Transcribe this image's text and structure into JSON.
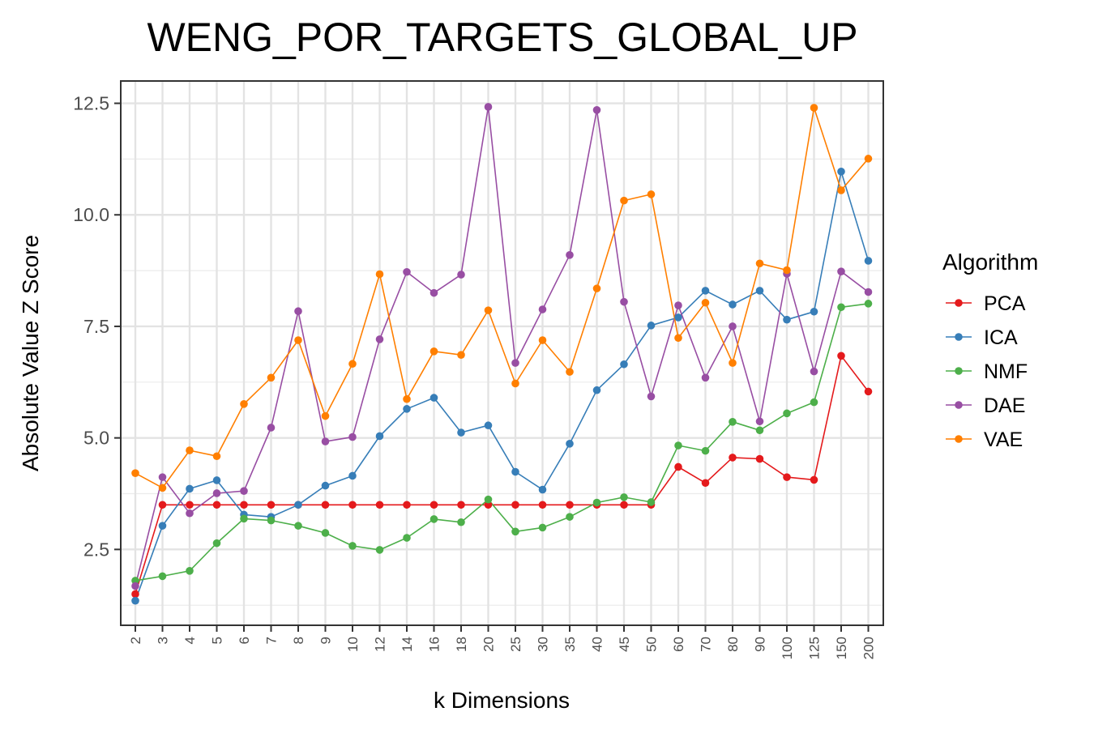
{
  "chart_data": {
    "type": "line",
    "title": "WENG_POR_TARGETS_GLOBAL_UP",
    "xlabel": "k Dimensions",
    "ylabel": "Absolute Value Z Score",
    "categories": [
      "2",
      "3",
      "4",
      "5",
      "6",
      "7",
      "8",
      "9",
      "10",
      "12",
      "14",
      "16",
      "18",
      "20",
      "25",
      "30",
      "35",
      "40",
      "45",
      "50",
      "60",
      "70",
      "80",
      "90",
      "100",
      "125",
      "150",
      "200"
    ],
    "ylim": [
      0.8,
      13.0
    ],
    "y_ticks": [
      2.5,
      5.0,
      7.5,
      10.0,
      12.5
    ],
    "y_tick_labels": [
      "2.5",
      "5.0",
      "7.5",
      "10.0",
      "12.5"
    ],
    "grid": true,
    "legend": {
      "title": "Algorithm",
      "position": "right"
    },
    "series": [
      {
        "name": "PCA",
        "color": "#e41a1c",
        "values": [
          1.5,
          3.5,
          3.5,
          3.5,
          3.5,
          3.5,
          3.5,
          3.5,
          3.5,
          3.5,
          3.5,
          3.5,
          3.5,
          3.5,
          3.5,
          3.5,
          3.5,
          3.5,
          3.5,
          3.5,
          4.35,
          3.99,
          4.56,
          4.53,
          4.12,
          4.06,
          6.84,
          6.04
        ]
      },
      {
        "name": "ICA",
        "color": "#377eb8",
        "values": [
          1.35,
          3.03,
          3.86,
          4.05,
          3.28,
          3.23,
          3.5,
          3.93,
          4.15,
          5.04,
          5.65,
          5.9,
          5.12,
          5.28,
          4.24,
          3.84,
          4.87,
          6.07,
          6.65,
          7.52,
          7.7,
          8.3,
          7.99,
          8.3,
          7.65,
          7.83,
          10.97,
          8.97
        ]
      },
      {
        "name": "NMF",
        "color": "#4daf4a",
        "values": [
          1.8,
          1.9,
          2.02,
          2.64,
          3.19,
          3.15,
          3.03,
          2.87,
          2.58,
          2.49,
          2.76,
          3.18,
          3.11,
          3.62,
          2.9,
          2.99,
          3.23,
          3.55,
          3.67,
          3.56,
          4.83,
          4.71,
          5.36,
          5.17,
          5.55,
          5.8,
          7.93,
          8.01
        ]
      },
      {
        "name": "DAE",
        "color": "#984ea3",
        "values": [
          1.68,
          4.12,
          3.31,
          3.76,
          3.81,
          5.23,
          7.84,
          4.92,
          5.02,
          7.21,
          8.72,
          8.25,
          8.66,
          12.42,
          6.68,
          7.88,
          9.1,
          12.35,
          8.05,
          5.93,
          7.97,
          6.35,
          7.5,
          5.37,
          8.68,
          6.49,
          8.73,
          8.27
        ]
      },
      {
        "name": "VAE",
        "color": "#ff7f00",
        "values": [
          4.21,
          3.88,
          4.72,
          4.59,
          5.76,
          6.35,
          7.19,
          5.49,
          6.66,
          8.67,
          5.87,
          6.94,
          6.86,
          7.86,
          6.22,
          7.19,
          6.48,
          8.35,
          10.32,
          10.46,
          7.24,
          8.03,
          6.68,
          8.91,
          8.76,
          12.4,
          10.55,
          11.26
        ]
      }
    ]
  }
}
